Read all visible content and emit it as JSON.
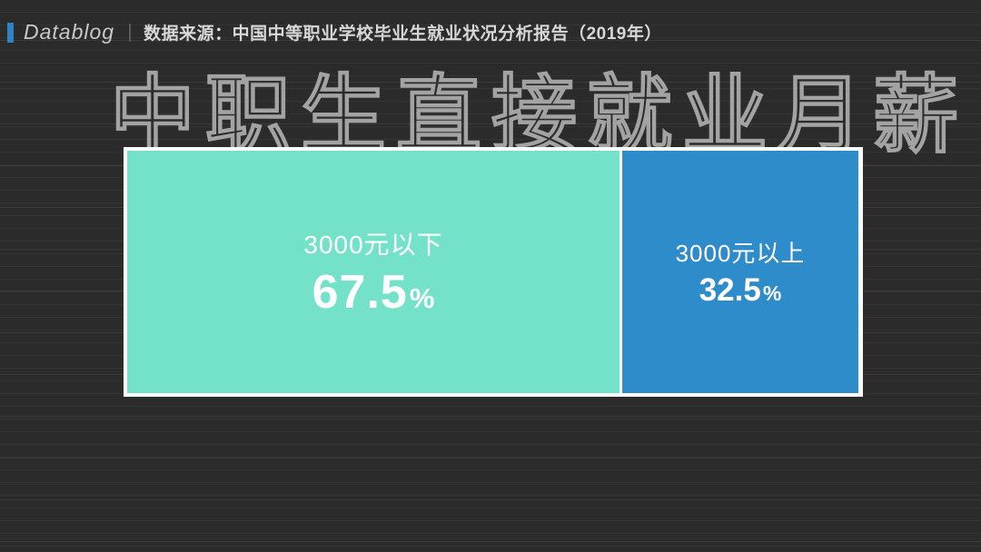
{
  "page": {
    "background_color": "#2b2b2b",
    "rule_line_color": "#3a3a3a"
  },
  "brand": {
    "name": "Datablog",
    "accent_color": "#2f82c6"
  },
  "source": {
    "text": "数据来源：中国中等职业学校毕业生就业状况分析报告（2019年）"
  },
  "title": {
    "text": "中职生直接就业月薪"
  },
  "chart_data": {
    "type": "bar",
    "subtype": "horizontal-stacked-100pct",
    "title": "中职生直接就业月薪",
    "categories": [
      "3000元以下",
      "3000元以上"
    ],
    "values": [
      67.5,
      32.5
    ],
    "unit": "%",
    "legend_position": "none",
    "grid": false,
    "border_color": "#ffffff",
    "segments": [
      {
        "label": "3000元以下",
        "value": "67.5",
        "value_num": 67.5,
        "pct_sign": "%",
        "color": "#74e2c8"
      },
      {
        "label": "3000元以上",
        "value": "32.5",
        "value_num": 32.5,
        "pct_sign": "%",
        "color": "#2f8ccb"
      }
    ]
  }
}
